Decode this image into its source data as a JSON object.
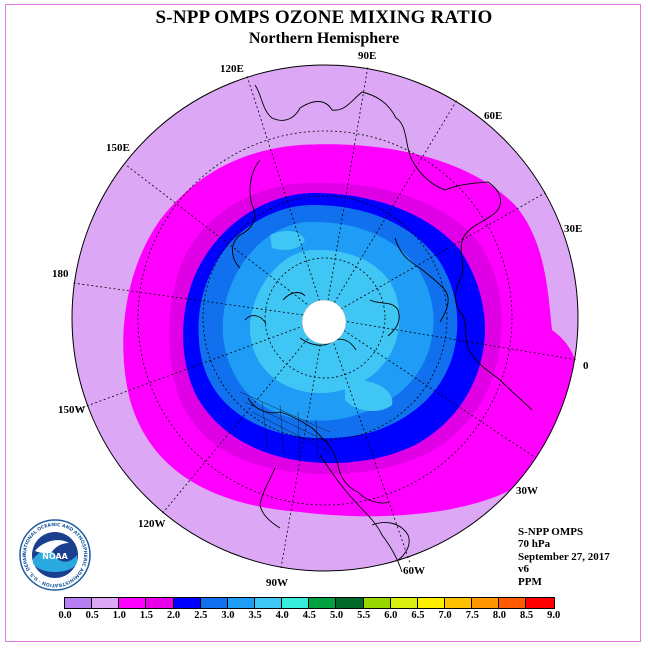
{
  "title": "S-NPP OMPS OZONE MIXING RATIO",
  "subtitle": "Northern Hemisphere",
  "longitude_labels": [
    "90E",
    "60E",
    "30E",
    "0",
    "30W",
    "60W",
    "90W",
    "120W",
    "150W",
    "180",
    "150E",
    "120E"
  ],
  "info": {
    "instrument": "S-NPP OMPS",
    "pressure": "70 hPa",
    "date": "September 27, 2017",
    "version": "v6",
    "units": "PPM"
  },
  "logo": {
    "text": "NOAA",
    "ring_text": "NATIONAL OCEANIC AND ATMOSPHERIC ADMINISTRATION · U.S. DEPARTMENT OF COMMERCE"
  },
  "colorbar": {
    "ticks": [
      "0.0",
      "0.5",
      "1.0",
      "1.5",
      "2.0",
      "2.5",
      "3.0",
      "3.5",
      "4.0",
      "4.5",
      "5.0",
      "5.5",
      "6.0",
      "6.5",
      "7.0",
      "7.5",
      "8.0",
      "8.5",
      "9.0"
    ],
    "colors": [
      "#b77ff2",
      "#dca8f5",
      "#ff00ff",
      "#e800e8",
      "#0000ff",
      "#1070ee",
      "#1f9cf5",
      "#3fc6f5",
      "#37ecd8",
      "#00a040",
      "#006a2a",
      "#98d800",
      "#d8ef10",
      "#ffee00",
      "#ffc000",
      "#ff9600",
      "#ff5a00",
      "#ff0000",
      "#8b5a3c"
    ]
  },
  "map_colors": {
    "outer": "#dca8f5",
    "band_1_0": "#ff00ff",
    "band_1_5": "#e000e6",
    "band_2_0": "#0000ff",
    "band_2_5": "#1070ee",
    "band_3_0": "#1f9cf5",
    "band_3_5": "#3fc6f5",
    "no_data": "#ffffff"
  }
}
